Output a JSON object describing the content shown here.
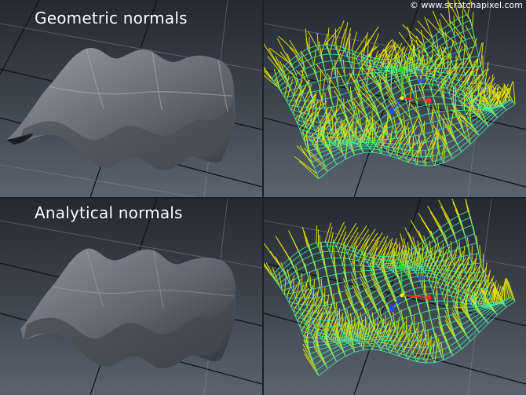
{
  "figure": {
    "copyright": "© www.scratchapixel.com",
    "rows": [
      {
        "title": "Geometric normals"
      },
      {
        "title": "Analytical normals"
      }
    ]
  },
  "colors": {
    "background_top": "#252a31",
    "background_bottom": "#5a6470",
    "surface_shade": "#8a8d92",
    "wireframe": "#3ef0b0",
    "normals": "#f2f200",
    "axis_x": "#ff2a2a",
    "axis_y": "#22dd22",
    "axis_z": "#2a4aff"
  }
}
